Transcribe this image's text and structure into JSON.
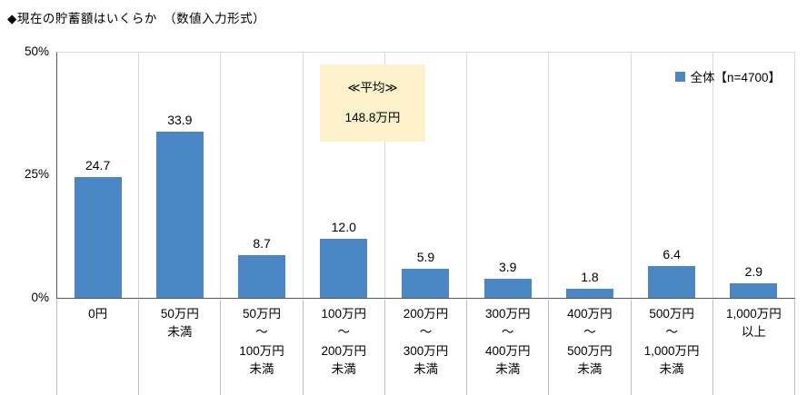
{
  "title": "◆現在の貯蓄額はいくらか　（数値入力形式）",
  "y_axis": {
    "tick_50": "50%",
    "tick_25": "25%",
    "tick_0": "0%"
  },
  "legend": {
    "label": "全体【n=4700】",
    "color": "#4a86c3"
  },
  "annotation": {
    "line1": "≪平均≫",
    "line2": "148.8万円",
    "bg_color": "#fdf1cb"
  },
  "chart_data": {
    "type": "bar",
    "title": "現在の貯蓄額はいくらか（数値入力形式）",
    "categories": [
      "0円",
      "50万円\n未満",
      "50万円\n～\n100万円\n未満",
      "100万円\n～\n200万円\n未満",
      "200万円\n～\n300万円\n未満",
      "300万円\n～\n400万円\n未満",
      "400万円\n～\n500万円\n未満",
      "500万円\n～\n1,000万円\n未満",
      "1,000万円\n以上"
    ],
    "values": [
      24.7,
      33.9,
      8.7,
      12.0,
      5.9,
      3.9,
      1.8,
      6.4,
      2.9
    ],
    "value_labels": [
      "24.7",
      "33.9",
      "8.7",
      "12.0",
      "5.9",
      "3.9",
      "1.8",
      "6.4",
      "2.9"
    ],
    "series_name": "全体【n=4700】",
    "xlabel": "",
    "ylabel": "%",
    "ylim": [
      0,
      50
    ],
    "y_ticks": [
      0,
      25,
      50
    ],
    "bar_color": "#4a86c3",
    "legend_position": "top-right",
    "grid": false
  }
}
